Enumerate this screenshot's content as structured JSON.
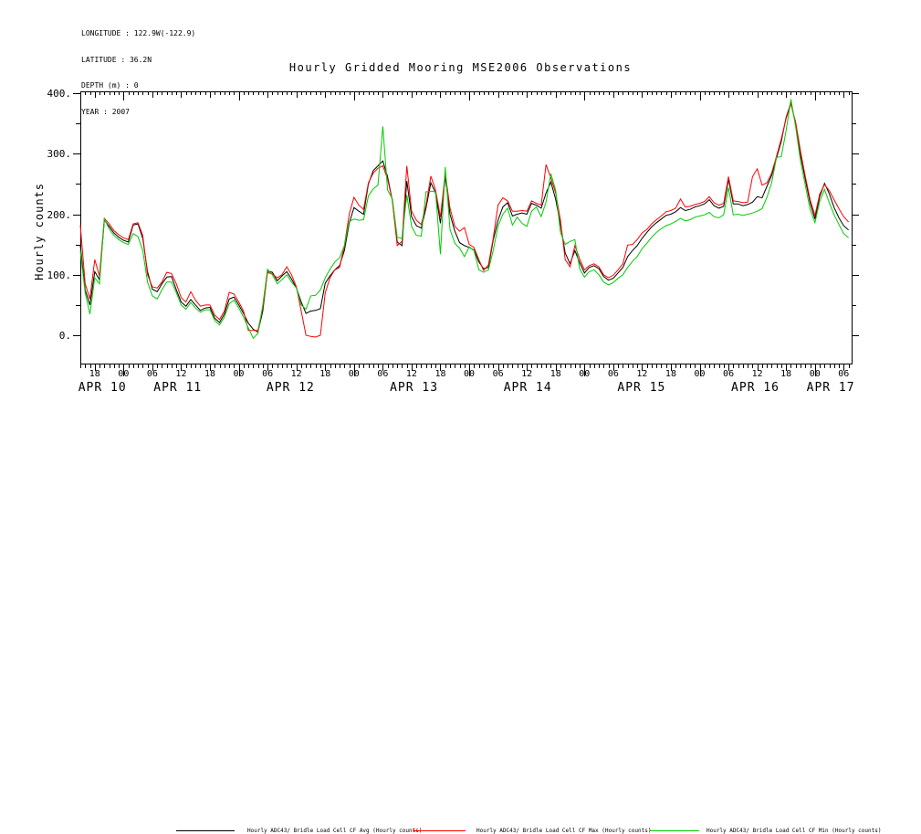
{
  "meta": {
    "lines": [
      "LONGITUDE : 122.9W(-122.9)",
      "LATITUDE : 36.2N",
      "DEPTH (m) : 0",
      "YEAR : 2007"
    ]
  },
  "title": "Hourly Gridded Mooring MSE2006 Observations",
  "chart_data": {
    "type": "line",
    "title": "Hourly Gridded Mooring MSE2006 Observations",
    "xlabel": "",
    "ylabel": "Hourly counts",
    "grid": false,
    "legend_position": "bottom",
    "x_start_label": "APR 10 15:00",
    "x_step_hours": 1,
    "x_axis_hour_labels": {
      "first_t": 3,
      "step": 6,
      "labels": [
        "18",
        "00",
        "06",
        "12",
        "18",
        "00",
        "06",
        "12",
        "18",
        "00",
        "06",
        "12",
        "18",
        "00",
        "06",
        "12",
        "18",
        "00",
        "06",
        "12",
        "18",
        "00",
        "06",
        "12",
        "18",
        "00",
        "06"
      ]
    },
    "x_axis_dates": [
      {
        "label": "APR 10",
        "t": 4.6
      },
      {
        "label": "APR 11",
        "t": 20.3
      },
      {
        "label": "APR 12",
        "t": 43.8
      },
      {
        "label": "APR 13",
        "t": 69.5
      },
      {
        "label": "APR 14",
        "t": 93.2
      },
      {
        "label": "APR 15",
        "t": 116.9
      },
      {
        "label": "APR 16",
        "t": 140.6
      },
      {
        "label": "APR 17",
        "t": 156.3
      }
    ],
    "y_axis": {
      "major_ticks": [
        0,
        100,
        200,
        300,
        400
      ],
      "major_tick_labels": [
        "0.",
        "100.",
        "200.",
        "300.",
        "400."
      ],
      "minor_ticks": [
        50,
        150,
        250,
        350
      ],
      "display_range": [
        -47,
        404
      ]
    },
    "series": [
      {
        "name": "Hourly ADC43/ Bridle Load Cell CF Avg (Hourly counts)",
        "color": "#000000",
        "values": [
          148,
          75,
          50,
          105,
          92,
          190,
          180,
          169,
          162,
          157,
          154,
          182,
          184,
          160,
          105,
          76,
          72,
          85,
          96,
          97,
          75,
          55,
          48,
          59,
          50,
          41,
          45,
          46,
          28,
          21,
          35,
          60,
          63,
          50,
          36,
          20,
          10,
          5,
          40,
          106,
          104,
          90,
          98,
          105,
          93,
          78,
          55,
          36,
          40,
          41,
          44,
          86,
          98,
          108,
          115,
          140,
          185,
          211,
          205,
          200,
          250,
          272,
          280,
          288,
          262,
          222,
          154,
          148,
          255,
          196,
          181,
          177,
          210,
          252,
          235,
          185,
          262,
          200,
          172,
          153,
          148,
          145,
          141,
          121,
          110,
          112,
          157,
          190,
          212,
          219,
          197,
          200,
          202,
          200,
          218,
          215,
          210,
          235,
          253,
          225,
          183,
          136,
          118,
          140,
          120,
          103,
          112,
          115,
          110,
          97,
          91,
          94,
          103,
          112,
          130,
          140,
          148,
          160,
          170,
          179,
          186,
          192,
          198,
          200,
          204,
          211,
          206,
          208,
          212,
          214,
          217,
          224,
          214,
          210,
          213,
          258,
          217,
          217,
          214,
          216,
          220,
          229,
          227,
          246,
          264,
          293,
          320,
          360,
          384,
          349,
          298,
          258,
          219,
          192,
          229,
          251,
          234,
          211,
          194,
          181,
          174
        ]
      },
      {
        "name": "Hourly ADC43/ Bridle Load Cell CF Max (Hourly counts)",
        "color": "#ff0000",
        "values": [
          182,
          85,
          60,
          125,
          98,
          193,
          184,
          173,
          166,
          161,
          158,
          184,
          186,
          165,
          100,
          80,
          78,
          88,
          104,
          102,
          85,
          62,
          55,
          72,
          58,
          48,
          50,
          50,
          33,
          26,
          40,
          71,
          68,
          55,
          40,
          8,
          8,
          8,
          45,
          104,
          101,
          95,
          100,
          113,
          100,
          80,
          40,
          0,
          -2,
          -3,
          0,
          70,
          95,
          108,
          112,
          148,
          200,
          228,
          215,
          208,
          252,
          268,
          276,
          280,
          258,
          222,
          148,
          155,
          280,
          205,
          190,
          183,
          215,
          263,
          240,
          195,
          268,
          210,
          180,
          172,
          178,
          150,
          145,
          125,
          107,
          116,
          160,
          215,
          227,
          222,
          205,
          205,
          206,
          205,
          222,
          218,
          215,
          282,
          260,
          235,
          190,
          125,
          113,
          148,
          126,
          108,
          115,
          118,
          113,
          100,
          95,
          99,
          108,
          118,
          149,
          150,
          158,
          169,
          175,
          184,
          191,
          197,
          204,
          206,
          210,
          225,
          212,
          213,
          216,
          218,
          221,
          229,
          219,
          215,
          218,
          262,
          222,
          221,
          219,
          220,
          262,
          275,
          248,
          252,
          268,
          296,
          324,
          358,
          382,
          352,
          304,
          263,
          224,
          198,
          233,
          249,
          239,
          224,
          209,
          196,
          187
        ]
      },
      {
        "name": "Hourly ADC43/ Bridle Load Cell CF Min (Hourly counts)",
        "color": "#00cc00",
        "values": [
          140,
          70,
          35,
          95,
          85,
          192,
          176,
          165,
          158,
          153,
          150,
          168,
          163,
          140,
          88,
          65,
          60,
          75,
          88,
          88,
          70,
          50,
          43,
          54,
          45,
          38,
          42,
          42,
          24,
          17,
          30,
          52,
          58,
          45,
          30,
          12,
          -5,
          3,
          50,
          109,
          100,
          85,
          92,
          100,
          88,
          78,
          50,
          43,
          65,
          66,
          75,
          95,
          109,
          121,
          128,
          148,
          188,
          192,
          190,
          191,
          230,
          242,
          248,
          345,
          240,
          225,
          162,
          160,
          232,
          180,
          165,
          164,
          237,
          238,
          237,
          134,
          278,
          175,
          152,
          144,
          130,
          146,
          140,
          108,
          104,
          108,
          140,
          180,
          200,
          210,
          182,
          195,
          185,
          180,
          205,
          212,
          196,
          220,
          267,
          240,
          170,
          150,
          155,
          158,
          110,
          96,
          105,
          108,
          100,
          88,
          83,
          87,
          94,
          100,
          112,
          122,
          130,
          143,
          152,
          162,
          170,
          176,
          181,
          184,
          188,
          193,
          189,
          191,
          195,
          197,
          199,
          203,
          196,
          194,
          199,
          244,
          199,
          200,
          198,
          200,
          202,
          205,
          209,
          228,
          252,
          294,
          295,
          338,
          390,
          344,
          288,
          248,
          208,
          186,
          221,
          241,
          219,
          199,
          183,
          168,
          161
        ]
      }
    ]
  },
  "legend": {
    "items": [
      {
        "label": "Hourly ADC43/ Bridle Load Cell CF Avg (Hourly counts)"
      },
      {
        "label": "Hourly ADC43/ Bridle Load Cell CF Max (Hourly counts)"
      },
      {
        "label": "Hourly ADC43/ Bridle Load Cell CF Min (Hourly counts)"
      }
    ]
  }
}
